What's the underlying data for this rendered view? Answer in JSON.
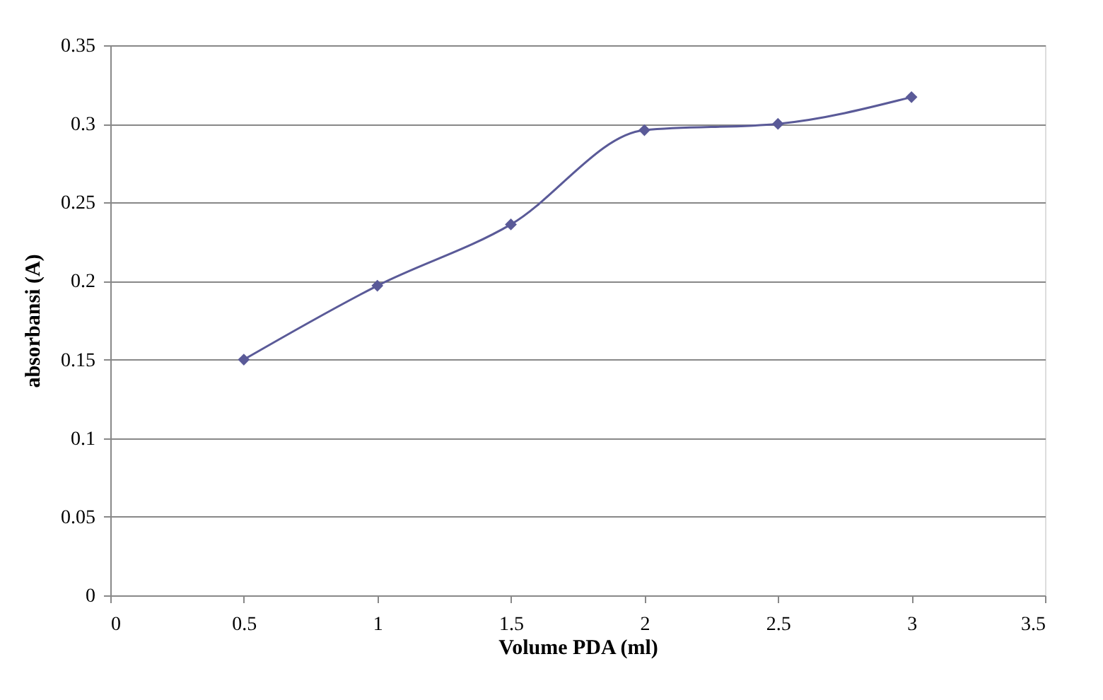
{
  "chart_data": {
    "type": "line",
    "xlabel": "Volume PDA (ml)",
    "ylabel": "absorbansi (A)",
    "x": [
      0.5,
      1,
      1.5,
      2,
      2.5,
      3
    ],
    "series": [
      {
        "color": "#5a5a98",
        "values": [
          0.15,
          0.197,
          0.236,
          0.296,
          0.3,
          0.317
        ]
      }
    ],
    "xlim": [
      0,
      3.5
    ],
    "xticks": [
      0,
      0.5,
      1,
      1.5,
      2,
      2.5,
      3,
      3.5
    ],
    "ylim": [
      0,
      0.35
    ],
    "yticks": [
      0,
      0.05,
      0.1,
      0.15,
      0.2,
      0.25,
      0.3,
      0.35
    ],
    "grid": "y",
    "marker": "diamond",
    "line_style": "solid"
  }
}
